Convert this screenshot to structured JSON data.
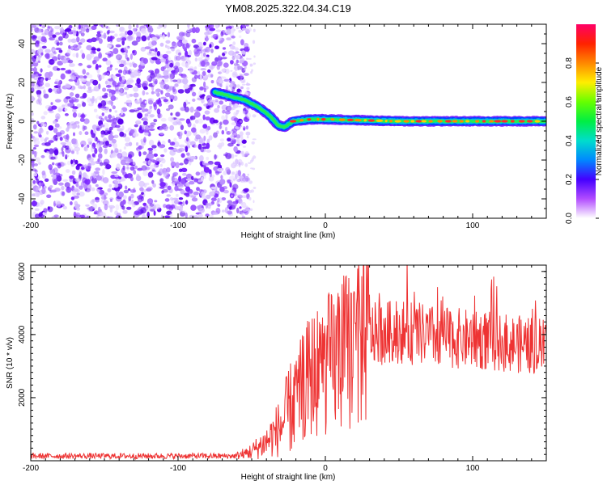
{
  "title": "YM08.2025.322.04.34.C19",
  "chart_data": [
    {
      "type": "heatmap",
      "xlabel": "Height of straight line (km)",
      "ylabel": "Frequency (Hz)",
      "xlim": [
        -200,
        150
      ],
      "ylim": [
        -50,
        50
      ],
      "xticks": [
        -200,
        -100,
        0,
        100
      ],
      "yticks": [
        -40,
        -20,
        0,
        20,
        40
      ],
      "noise_region_x": [
        -200,
        -60
      ],
      "signal_track": [
        {
          "x": -75,
          "f": 15
        },
        {
          "x": -65,
          "f": 13
        },
        {
          "x": -55,
          "f": 11
        },
        {
          "x": -45,
          "f": 7
        },
        {
          "x": -38,
          "f": 3
        },
        {
          "x": -32,
          "f": -2
        },
        {
          "x": -28,
          "f": -3
        },
        {
          "x": -22,
          "f": 0
        },
        {
          "x": -10,
          "f": 1
        },
        {
          "x": 0,
          "f": 1
        },
        {
          "x": 50,
          "f": 0
        },
        {
          "x": 100,
          "f": 0
        },
        {
          "x": 150,
          "f": 0
        }
      ],
      "colorbar": {
        "label": "Normalized spectral amplitude",
        "ticks": [
          "0.0",
          "0.2",
          "0.4",
          "0.6",
          "0.8"
        ],
        "range": [
          0,
          1
        ]
      }
    },
    {
      "type": "line",
      "xlabel": "Height of straight line (km)",
      "ylabel": "SNR (10 * v/v)",
      "xlim": [
        -200,
        150
      ],
      "ylim": [
        0,
        6200
      ],
      "xticks": [
        -200,
        -100,
        0,
        100
      ],
      "yticks": [
        2000,
        4000,
        6000
      ],
      "series": [
        {
          "name": "SNR",
          "color": "#ee3333",
          "profile": [
            {
              "x": -200,
              "y": 150
            },
            {
              "x": -60,
              "y": 150
            },
            {
              "x": -50,
              "y": 300
            },
            {
              "x": -40,
              "y": 600
            },
            {
              "x": -30,
              "y": 1100
            },
            {
              "x": -20,
              "y": 2000
            },
            {
              "x": -10,
              "y": 2700
            },
            {
              "x": 0,
              "y": 3000
            },
            {
              "x": 10,
              "y": 3300
            },
            {
              "x": 20,
              "y": 3700
            },
            {
              "x": 30,
              "y": 4000
            },
            {
              "x": 50,
              "y": 4100
            },
            {
              "x": 80,
              "y": 3900
            },
            {
              "x": 100,
              "y": 3850
            },
            {
              "x": 120,
              "y": 3750
            },
            {
              "x": 150,
              "y": 3600
            }
          ]
        }
      ]
    }
  ]
}
